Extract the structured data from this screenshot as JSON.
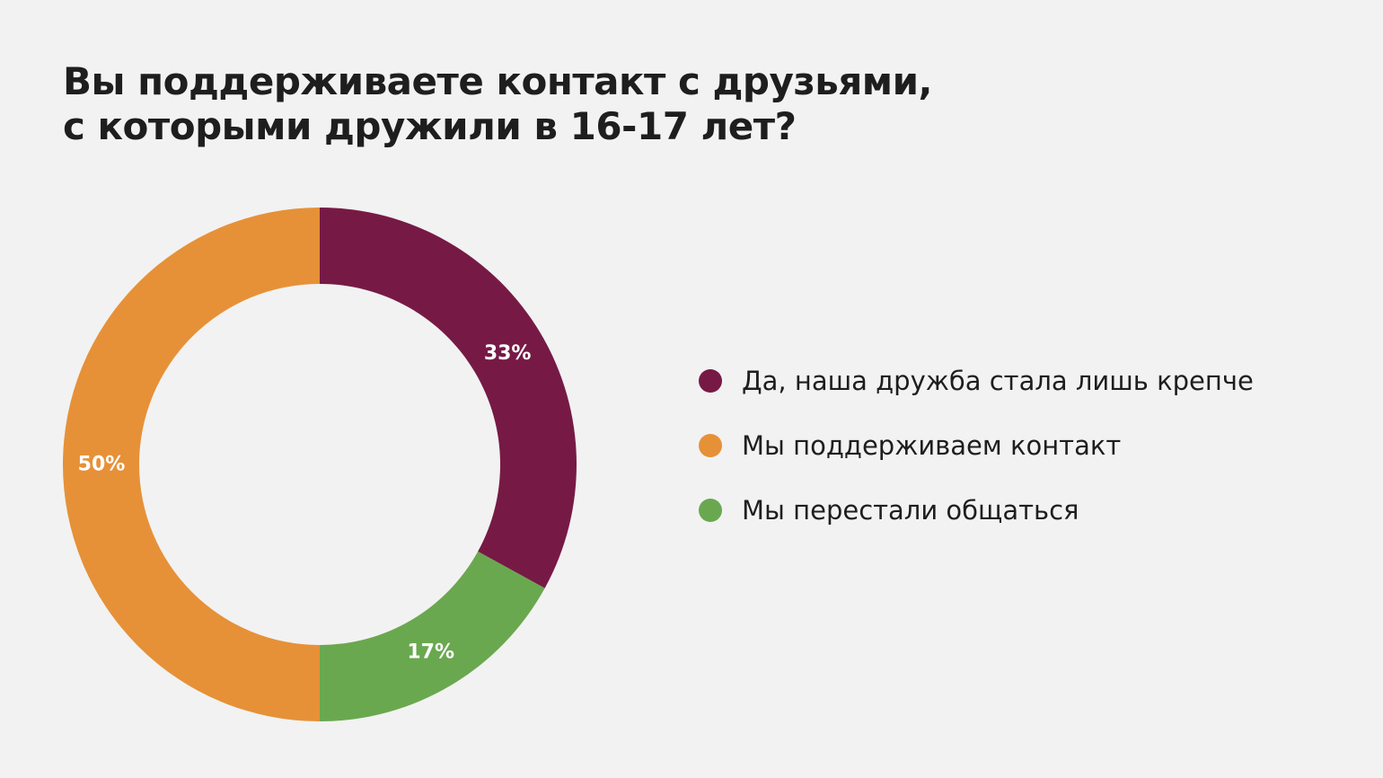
{
  "chart_data": {
    "type": "pie",
    "donut": true,
    "title_lines": [
      "Вы поддерживаете контакт с друзьями,",
      "с которыми дружили в 16-17 лет?"
    ],
    "slices": [
      {
        "label": "Да, наша дружба стала лишь крепче",
        "value": 33,
        "value_label": "33%",
        "color": "#761a45"
      },
      {
        "label": "Мы перестали общаться",
        "value": 17,
        "value_label": "17%",
        "color": "#6aa84f"
      },
      {
        "label": "Мы поддерживаем контакт",
        "value": 50,
        "value_label": "50%",
        "color": "#e69138"
      }
    ],
    "legend_order": [
      0,
      2,
      1
    ],
    "legend_position": "right"
  }
}
